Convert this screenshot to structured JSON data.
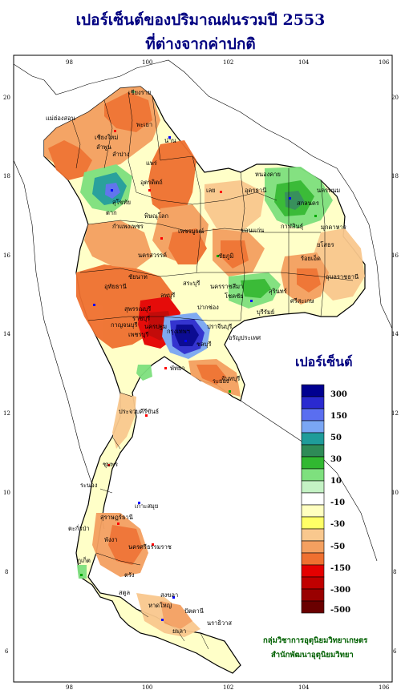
{
  "title": {
    "line1": "เปอร์เซ็นต์ของปริมาณฝนรวมปี  2553",
    "line2": "ที่ต่างจากค่าปกติ"
  },
  "axes": {
    "longitude_labels": [
      "98",
      "100",
      "102",
      "104",
      "106"
    ],
    "latitude_labels": [
      "20",
      "18",
      "16",
      "14",
      "12",
      "10",
      "8",
      "6"
    ]
  },
  "provinces": [
    "เชียงราย",
    "แม่ฮ่องสอน",
    "พะเยา",
    "เชียงใหม่",
    "ลำพูน",
    "ลำปาง",
    "น่าน",
    "แพร่",
    "อุตรดิตถ์",
    "หนองคาย",
    "นครพนม",
    "สกลนคร",
    "อุดรธานี",
    "ตาก",
    "สุโขทัย",
    "พิษณุโลก",
    "เลย",
    "มุกดาหาร",
    "กำแพงเพชร",
    "เพชรบูรณ์",
    "ขอนแก่น",
    "นครสวรรค์",
    "ชัยภูมิ",
    "อุบลราชธานี",
    "นครราชสีมา",
    "สุรินทร์",
    "ลพบุรี",
    "สุพรรณบุรี",
    "กาญจนบุรี",
    "ปราจีนบุรี",
    "อรัญประเทศ",
    "โชคชัย",
    "ศรีสะเกษ",
    "ชลบุรี",
    "ระยอง",
    "จันทบุรี",
    "พัทยา",
    "ประจวบคีรีขันธ์",
    "ชุมพร",
    "ระนอง",
    "เกาะสมุย",
    "สุราษฎร์ธานี",
    "ตะกั่วป่า",
    "นครศรีธรรมราช",
    "พังงา",
    "ภูเก็ต",
    "ตรัง",
    "สตูล",
    "หาดใหญ่",
    "ปัตตานี",
    "นราธิวาส",
    "ยะลา",
    "สงขลา",
    "เพชรบุรี",
    "ราชบุรี",
    "กรุงเทพฯ",
    "นครปฐม",
    "สระบุรี",
    "ชัยนาท",
    "อุทัยธานี",
    "ร้อยเอ็ด",
    "ยโสธร",
    "ปากช่อง",
    "บุรีรัมย์",
    "กาฬสินธุ์"
  ],
  "legend": {
    "title": "เปอร์เซ็นต์",
    "labels": [
      "300",
      "150",
      "50",
      "30",
      "10",
      "-10",
      "-30",
      "-50",
      "-150",
      "-300",
      "-500"
    ],
    "colors": [
      "#000090",
      "#2a2ad0",
      "#5a6ef0",
      "#7aa6f4",
      "#1f9c9a",
      "#2e8b57",
      "#31b831",
      "#7ee07e",
      "#c4f2c4",
      "#ffffff",
      "#ffffc0",
      "#ffff66",
      "#f9c88e",
      "#f4a060",
      "#ef7030",
      "#e40000",
      "#c00000",
      "#990000",
      "#6a0000"
    ]
  },
  "credits": {
    "line1": "กลุ่มวิชาการอุตุนิยมวิทยาเกษตร",
    "line2": "สำนักพัฒนาอุตุนิยมวิทยา"
  }
}
